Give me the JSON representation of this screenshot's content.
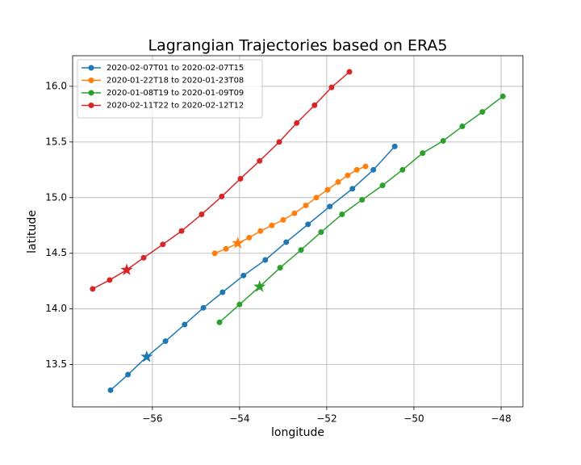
{
  "chart_data": {
    "type": "line",
    "title": "Lagrangian Trajectories based on ERA5",
    "x_label": "longitude",
    "y_label": "latitude",
    "xlim": [
      -57.83,
      -47.5
    ],
    "ylim": [
      13.12,
      16.275
    ],
    "xticks": [
      {
        "value": -56,
        "label": "−56"
      },
      {
        "value": -54,
        "label": "−54"
      },
      {
        "value": -52,
        "label": "−52"
      },
      {
        "value": -50,
        "label": "−50"
      },
      {
        "value": -48,
        "label": "−48"
      }
    ],
    "yticks": [
      13.5,
      {
        "value": 14,
        "label": "14.0"
      },
      14.5,
      {
        "value": 15,
        "label": "15.0"
      },
      15.5,
      {
        "value": 16,
        "label": "16.0"
      }
    ],
    "grid": true,
    "legend": "upper left",
    "highlight_index": 2,
    "series": [
      {
        "name": "2020-02-07T01 to 2020-02-07T15",
        "color": "#1f77b4",
        "x": [
          -56.96,
          -56.56,
          -56.13,
          -55.7,
          -55.26,
          -54.83,
          -54.39,
          -53.91,
          -53.41,
          -52.93,
          -52.43,
          -51.93,
          -51.41,
          -50.93,
          -50.44
        ],
        "values": [
          13.27,
          13.41,
          13.57,
          13.71,
          13.86,
          14.01,
          14.15,
          14.3,
          14.44,
          14.6,
          14.76,
          14.92,
          15.08,
          15.25,
          15.46
        ]
      },
      {
        "name": "2020-01-22T18 to 2020-01-23T08",
        "color": "#ff7f0e",
        "x": [
          -54.57,
          -54.31,
          -54.04,
          -53.78,
          -53.52,
          -53.26,
          -53.0,
          -52.74,
          -52.48,
          -52.24,
          -51.98,
          -51.74,
          -51.52,
          -51.31,
          -51.11
        ],
        "values": [
          14.5,
          14.54,
          14.59,
          14.64,
          14.7,
          14.75,
          14.8,
          14.86,
          14.93,
          15.0,
          15.07,
          15.14,
          15.2,
          15.25,
          15.28
        ]
      },
      {
        "name": "2020-01-08T19 to 2020-01-09T09",
        "color": "#2ca02c",
        "x": [
          -54.46,
          -54.0,
          -53.54,
          -53.07,
          -52.59,
          -52.13,
          -51.65,
          -51.19,
          -50.72,
          -50.26,
          -49.8,
          -49.33,
          -48.89,
          -48.43,
          -47.96
        ],
        "values": [
          13.88,
          14.04,
          14.2,
          14.37,
          14.53,
          14.69,
          14.85,
          14.98,
          15.11,
          15.25,
          15.4,
          15.51,
          15.64,
          15.77,
          15.91
        ]
      },
      {
        "name": "2020-02-11T22 to 2020-02-12T12",
        "color": "#d62728",
        "x": [
          -57.37,
          -56.98,
          -56.59,
          -56.2,
          -55.76,
          -55.33,
          -54.87,
          -54.41,
          -53.98,
          -53.54,
          -53.09,
          -52.69,
          -52.28,
          -51.89,
          -51.48
        ],
        "values": [
          14.18,
          14.26,
          14.35,
          14.46,
          14.58,
          14.7,
          14.85,
          15.01,
          15.17,
          15.33,
          15.5,
          15.67,
          15.83,
          15.99,
          16.13
        ]
      }
    ]
  }
}
